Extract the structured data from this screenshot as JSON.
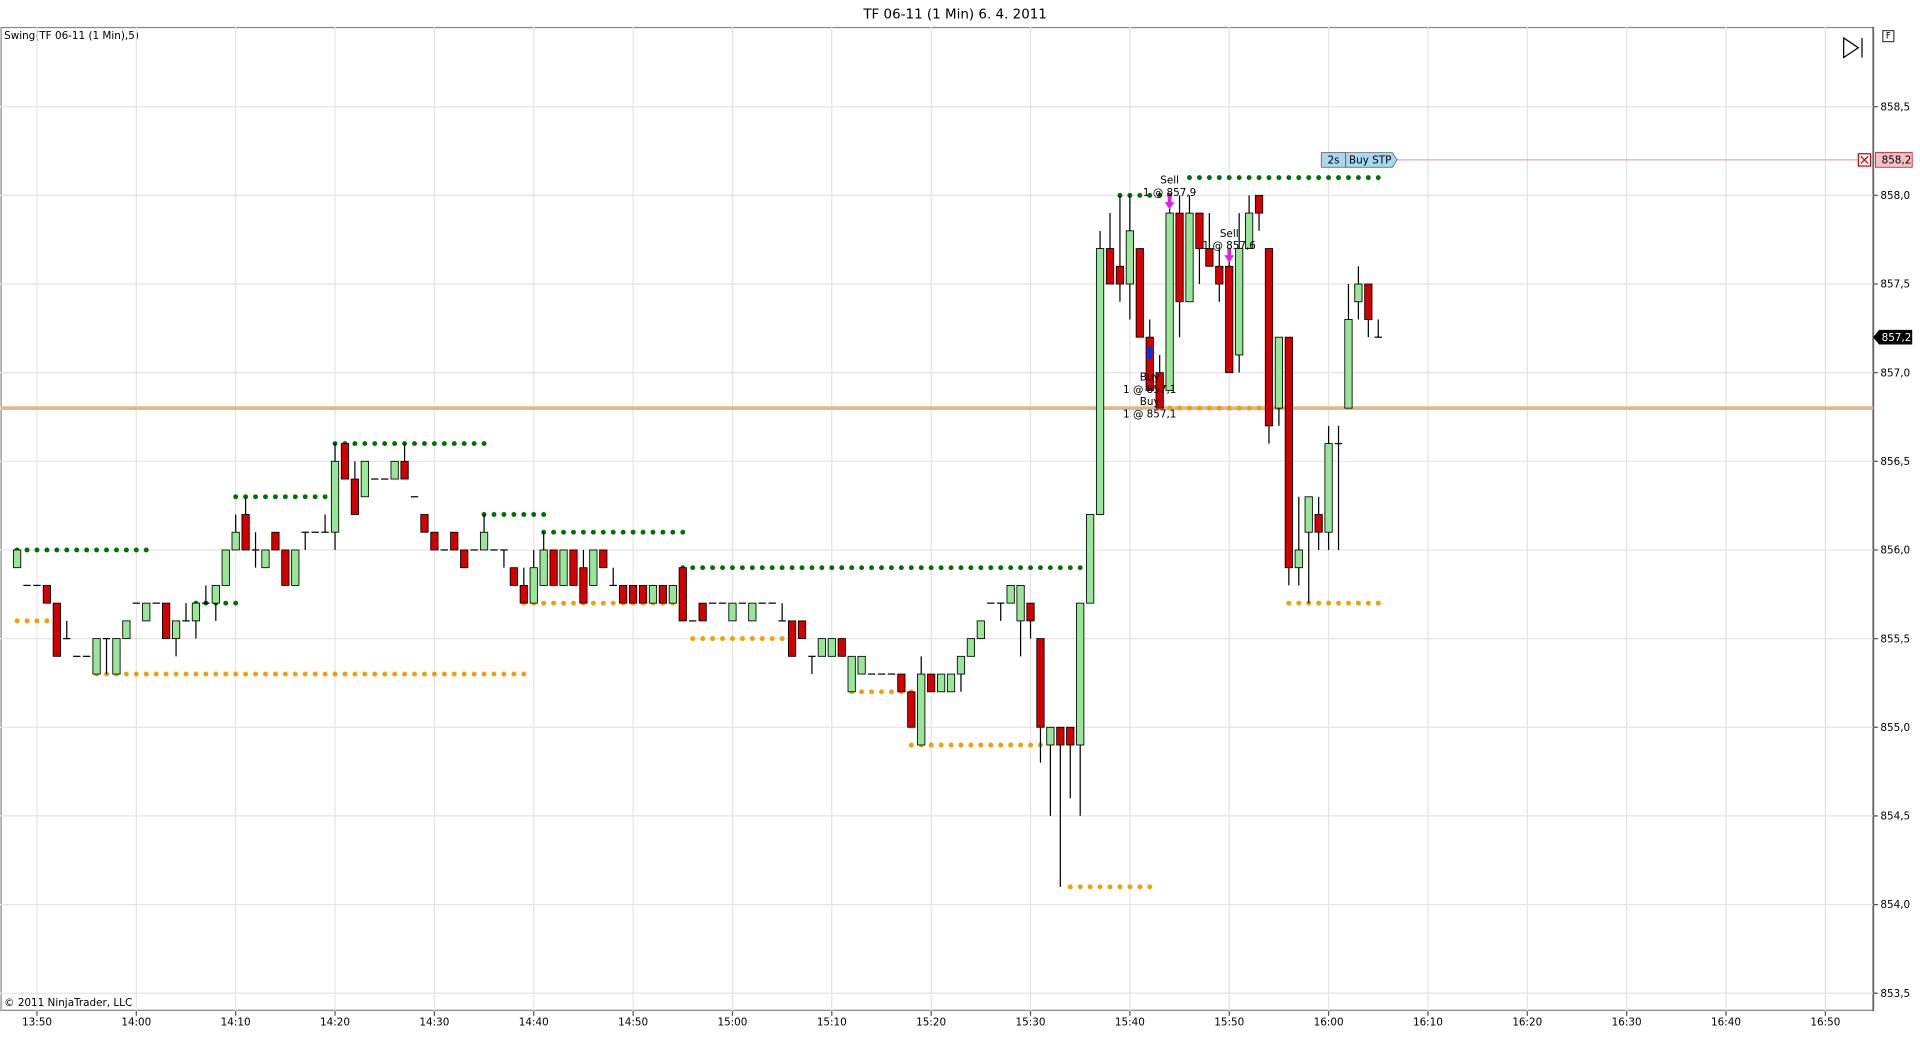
{
  "chart_data": {
    "type": "candlestick",
    "title": "TF 06-11 (1 Min)  6. 4. 2011",
    "indicator": "Swing(TF 06-11 (1 Min),5)",
    "copyright": "© 2011 NinjaTrader, LLC",
    "ylim": [
      853.4,
      858.95
    ],
    "yticks": [
      {
        "value": 853.5,
        "label": "853,5"
      },
      {
        "value": 854,
        "label": "854,0"
      },
      {
        "value": 854.5,
        "label": "854,5"
      },
      {
        "value": 855,
        "label": "855,0"
      },
      {
        "value": 855.5,
        "label": "855,5"
      },
      {
        "value": 856,
        "label": "856,0"
      },
      {
        "value": 856.5,
        "label": "856,5"
      },
      {
        "value": 857,
        "label": "857,0"
      },
      {
        "value": 857.5,
        "label": "857,5"
      },
      {
        "value": 858,
        "label": "858,0"
      },
      {
        "value": 858.5,
        "label": "858,5"
      }
    ],
    "xticks": [
      "13:50",
      "14:00",
      "14:10",
      "14:20",
      "14:30",
      "14:40",
      "14:50",
      "15:00",
      "15:10",
      "15:20",
      "15:30",
      "15:40",
      "15:50",
      "16:00",
      "16:10",
      "16:20",
      "16:30",
      "16:40",
      "16:50"
    ],
    "grid": true,
    "up_color": "#98e698",
    "down_color": "#d40000",
    "candles": [
      [
        "13:48",
        855.9,
        856.0,
        855.9,
        856.0
      ],
      [
        "13:49",
        855.8,
        855.8,
        855.8,
        855.8
      ],
      [
        "13:50",
        855.8,
        855.8,
        855.8,
        855.8
      ],
      [
        "13:51",
        855.8,
        855.8,
        855.7,
        855.7
      ],
      [
        "13:52",
        855.7,
        855.7,
        855.4,
        855.4
      ],
      [
        "13:53",
        855.5,
        855.6,
        855.5,
        855.5
      ],
      [
        "13:54",
        855.4,
        855.4,
        855.4,
        855.4
      ],
      [
        "13:55",
        855.4,
        855.4,
        855.4,
        855.4
      ],
      [
        "13:56",
        855.3,
        855.5,
        855.3,
        855.5
      ],
      [
        "13:57",
        855.5,
        855.5,
        855.3,
        855.5
      ],
      [
        "13:58",
        855.3,
        855.5,
        855.3,
        855.5
      ],
      [
        "13:59",
        855.5,
        855.6,
        855.5,
        855.6
      ],
      [
        "14:00",
        855.7,
        855.7,
        855.7,
        855.7
      ],
      [
        "14:01",
        855.6,
        855.7,
        855.6,
        855.7
      ],
      [
        "14:02",
        855.7,
        855.7,
        855.7,
        855.7
      ],
      [
        "14:03",
        855.7,
        855.7,
        855.5,
        855.5
      ],
      [
        "14:04",
        855.5,
        855.6,
        855.4,
        855.6
      ],
      [
        "14:05",
        855.6,
        855.7,
        855.6,
        855.6
      ],
      [
        "14:06",
        855.6,
        855.7,
        855.5,
        855.7
      ],
      [
        "14:07",
        855.7,
        855.8,
        855.7,
        855.7
      ],
      [
        "14:08",
        855.7,
        855.8,
        855.6,
        855.8
      ],
      [
        "14:09",
        855.8,
        856.0,
        855.8,
        856.0
      ],
      [
        "14:10",
        856.0,
        856.2,
        856.0,
        856.1
      ],
      [
        "14:11",
        856.2,
        856.3,
        856.0,
        856.0
      ],
      [
        "14:12",
        856.0,
        856.1,
        855.9,
        856.0
      ],
      [
        "14:13",
        855.9,
        856.0,
        855.9,
        856.0
      ],
      [
        "14:14",
        856.1,
        856.1,
        856.0,
        856.0
      ],
      [
        "14:15",
        856.0,
        856.0,
        855.8,
        855.8
      ],
      [
        "14:16",
        855.8,
        856.0,
        855.8,
        856.0
      ],
      [
        "14:17",
        856.1,
        856.1,
        856.0,
        856.1
      ],
      [
        "14:18",
        856.1,
        856.1,
        856.1,
        856.1
      ],
      [
        "14:19",
        856.1,
        856.2,
        856.1,
        856.1
      ],
      [
        "14:20",
        856.1,
        856.6,
        856.0,
        856.5
      ],
      [
        "14:21",
        856.6,
        856.6,
        856.4,
        856.4
      ],
      [
        "14:22",
        856.4,
        856.5,
        856.2,
        856.2
      ],
      [
        "14:23",
        856.3,
        856.5,
        856.3,
        856.5
      ],
      [
        "14:24",
        856.4,
        856.4,
        856.4,
        856.4
      ],
      [
        "14:25",
        856.4,
        856.4,
        856.4,
        856.4
      ],
      [
        "14:26",
        856.4,
        856.5,
        856.4,
        856.5
      ],
      [
        "14:27",
        856.5,
        856.6,
        856.4,
        856.4
      ],
      [
        "14:28",
        856.3,
        856.3,
        856.3,
        856.3
      ],
      [
        "14:29",
        856.2,
        856.2,
        856.1,
        856.1
      ],
      [
        "14:30",
        856.1,
        856.1,
        856.0,
        856.0
      ],
      [
        "14:31",
        856.0,
        856.0,
        856.0,
        856.0
      ],
      [
        "14:32",
        856.1,
        856.1,
        856.0,
        856.0
      ],
      [
        "14:33",
        856.0,
        856.0,
        855.9,
        855.9
      ],
      [
        "14:34",
        856.0,
        856.0,
        856.0,
        856.0
      ],
      [
        "14:35",
        856.0,
        856.2,
        856.0,
        856.1
      ],
      [
        "14:36",
        856.0,
        856.0,
        856.0,
        856.0
      ],
      [
        "14:37",
        856.0,
        856.0,
        855.9,
        856.0
      ],
      [
        "14:38",
        855.9,
        855.9,
        855.8,
        855.8
      ],
      [
        "14:39",
        855.8,
        855.9,
        855.7,
        855.7
      ],
      [
        "14:40",
        855.7,
        856.0,
        855.7,
        855.9
      ],
      [
        "14:41",
        855.8,
        856.1,
        855.8,
        856.0
      ],
      [
        "14:42",
        856.0,
        856.0,
        855.8,
        855.8
      ],
      [
        "14:43",
        855.8,
        856.0,
        855.8,
        856.0
      ],
      [
        "14:44",
        856.0,
        856.0,
        855.8,
        855.8
      ],
      [
        "14:45",
        855.9,
        856.0,
        855.7,
        855.7
      ],
      [
        "14:46",
        855.8,
        856.0,
        855.8,
        856.0
      ],
      [
        "14:47",
        856.0,
        856.0,
        855.9,
        855.9
      ],
      [
        "14:48",
        855.8,
        855.9,
        855.8,
        855.8
      ],
      [
        "14:49",
        855.8,
        855.8,
        855.7,
        855.7
      ],
      [
        "14:50",
        855.8,
        855.8,
        855.7,
        855.7
      ],
      [
        "14:51",
        855.8,
        855.8,
        855.7,
        855.7
      ],
      [
        "14:52",
        855.7,
        855.8,
        855.7,
        855.8
      ],
      [
        "14:53",
        855.8,
        855.8,
        855.7,
        855.7
      ],
      [
        "14:54",
        855.7,
        855.8,
        855.7,
        855.8
      ],
      [
        "14:55",
        855.9,
        855.9,
        855.6,
        855.6
      ],
      [
        "14:56",
        855.6,
        855.6,
        855.6,
        855.6
      ],
      [
        "14:57",
        855.7,
        855.7,
        855.6,
        855.6
      ],
      [
        "14:58",
        855.7,
        855.7,
        855.7,
        855.7
      ],
      [
        "14:59",
        855.7,
        855.7,
        855.7,
        855.7
      ],
      [
        "15:00",
        855.6,
        855.7,
        855.6,
        855.7
      ],
      [
        "15:01",
        855.7,
        855.7,
        855.7,
        855.7
      ],
      [
        "15:02",
        855.6,
        855.7,
        855.6,
        855.7
      ],
      [
        "15:03",
        855.7,
        855.7,
        855.7,
        855.7
      ],
      [
        "15:04",
        855.7,
        855.7,
        855.7,
        855.7
      ],
      [
        "15:05",
        855.6,
        855.7,
        855.6,
        855.6
      ],
      [
        "15:06",
        855.6,
        855.6,
        855.4,
        855.4
      ],
      [
        "15:07",
        855.6,
        855.6,
        855.5,
        855.5
      ],
      [
        "15:08",
        855.4,
        855.4,
        855.3,
        855.4
      ],
      [
        "15:09",
        855.4,
        855.5,
        855.4,
        855.5
      ],
      [
        "15:10",
        855.4,
        855.5,
        855.4,
        855.5
      ],
      [
        "15:11",
        855.5,
        855.5,
        855.4,
        855.4
      ],
      [
        "15:12",
        855.2,
        855.4,
        855.2,
        855.4
      ],
      [
        "15:13",
        855.3,
        855.4,
        855.3,
        855.4
      ],
      [
        "15:14",
        855.3,
        855.3,
        855.3,
        855.3
      ],
      [
        "15:15",
        855.3,
        855.3,
        855.3,
        855.3
      ],
      [
        "15:16",
        855.3,
        855.3,
        855.3,
        855.3
      ],
      [
        "15:17",
        855.3,
        855.3,
        855.2,
        855.2
      ],
      [
        "15:18",
        855.2,
        855.2,
        855.0,
        855.0
      ],
      [
        "15:19",
        854.9,
        855.4,
        854.9,
        855.3
      ],
      [
        "15:20",
        855.3,
        855.3,
        855.2,
        855.2
      ],
      [
        "15:21",
        855.2,
        855.3,
        855.2,
        855.3
      ],
      [
        "15:22",
        855.2,
        855.3,
        855.2,
        855.3
      ],
      [
        "15:23",
        855.3,
        855.4,
        855.2,
        855.4
      ],
      [
        "15:24",
        855.4,
        855.5,
        855.4,
        855.5
      ],
      [
        "15:25",
        855.5,
        855.6,
        855.5,
        855.6
      ],
      [
        "15:26",
        855.7,
        855.7,
        855.7,
        855.7
      ],
      [
        "15:27",
        855.7,
        855.7,
        855.6,
        855.7
      ],
      [
        "15:28",
        855.7,
        855.8,
        855.7,
        855.8
      ],
      [
        "15:29",
        855.6,
        855.8,
        855.4,
        855.8
      ],
      [
        "15:30",
        855.7,
        855.7,
        855.5,
        855.6
      ],
      [
        "15:31",
        855.5,
        855.5,
        854.8,
        855.0
      ],
      [
        "15:32",
        854.9,
        855.0,
        854.5,
        855.0
      ],
      [
        "15:33",
        855.0,
        855.0,
        854.1,
        854.9
      ],
      [
        "15:34",
        855.0,
        855.0,
        854.6,
        854.9
      ],
      [
        "15:35",
        854.9,
        855.7,
        854.5,
        855.7
      ],
      [
        "15:36",
        855.7,
        856.2,
        855.7,
        856.2
      ],
      [
        "15:37",
        856.2,
        857.8,
        856.2,
        857.7
      ],
      [
        "15:38",
        857.7,
        857.9,
        857.5,
        857.5
      ],
      [
        "15:39",
        857.6,
        858.0,
        857.4,
        857.5
      ],
      [
        "15:40",
        857.5,
        858.0,
        857.3,
        857.8
      ],
      [
        "15:41",
        857.7,
        857.7,
        857.2,
        857.2
      ],
      [
        "15:42",
        857.2,
        857.3,
        856.9,
        856.9
      ],
      [
        "15:43",
        857.0,
        857.1,
        856.8,
        856.8
      ],
      [
        "15:44",
        856.9,
        858.0,
        856.9,
        857.9
      ],
      [
        "15:45",
        857.9,
        858.0,
        857.2,
        857.4
      ],
      [
        "15:46",
        857.4,
        858.0,
        857.4,
        857.9
      ],
      [
        "15:47",
        857.9,
        857.9,
        857.5,
        857.7
      ],
      [
        "15:48",
        857.7,
        857.9,
        857.6,
        857.6
      ],
      [
        "15:49",
        857.6,
        857.7,
        857.4,
        857.5
      ],
      [
        "15:50",
        857.6,
        857.7,
        857.0,
        857.0
      ],
      [
        "15:51",
        857.1,
        857.9,
        857.0,
        857.7
      ],
      [
        "15:52",
        857.7,
        858.0,
        857.7,
        857.9
      ],
      [
        "15:53",
        858.0,
        858.0,
        857.8,
        857.9
      ],
      [
        "15:54",
        857.7,
        857.7,
        856.6,
        856.7
      ],
      [
        "15:55",
        856.8,
        857.2,
        856.7,
        857.2
      ],
      [
        "15:56",
        857.2,
        857.2,
        855.8,
        855.9
      ],
      [
        "15:57",
        855.9,
        856.3,
        855.8,
        856.0
      ],
      [
        "15:58",
        856.1,
        856.3,
        855.7,
        856.3
      ],
      [
        "15:59",
        856.2,
        856.3,
        856.0,
        856.1
      ],
      [
        "16:00",
        856.1,
        856.7,
        856.0,
        856.6
      ],
      [
        "16:01",
        856.6,
        856.7,
        856.0,
        856.6
      ],
      [
        "16:02",
        856.8,
        857.5,
        856.8,
        857.3
      ],
      [
        "16:03",
        857.4,
        857.6,
        857.3,
        857.5
      ],
      [
        "16:04",
        857.5,
        857.5,
        857.2,
        857.3
      ],
      [
        "16:05",
        857.2,
        857.3,
        857.2,
        857.2
      ]
    ],
    "swing_high": {
      "color": "#007000",
      "segments": [
        {
          "start": "13:48",
          "end": "14:01",
          "value": 856.0
        },
        {
          "start": "14:06",
          "end": "14:10",
          "value": 855.7
        },
        {
          "start": "14:10",
          "end": "14:20",
          "value": 856.3
        },
        {
          "start": "14:20",
          "end": "14:35",
          "value": 856.6
        },
        {
          "start": "14:35",
          "end": "14:41",
          "value": 856.2
        },
        {
          "start": "14:41",
          "end": "14:55",
          "value": 856.1
        },
        {
          "start": "14:55",
          "end": "15:36",
          "value": 855.9
        },
        {
          "start": "15:39",
          "end": "15:44",
          "value": 858.0
        },
        {
          "start": "15:46",
          "end": "16:05",
          "value": 858.1
        }
      ]
    },
    "swing_low": {
      "color": "#f0a000",
      "segments": [
        {
          "start": "13:48",
          "end": "13:51",
          "value": 855.6
        },
        {
          "start": "13:56",
          "end": "14:39",
          "value": 855.3
        },
        {
          "start": "14:39",
          "end": "14:54",
          "value": 855.7
        },
        {
          "start": "14:56",
          "end": "15:06",
          "value": 855.5
        },
        {
          "start": "15:12",
          "end": "15:18",
          "value": 855.2
        },
        {
          "start": "15:18",
          "end": "15:31",
          "value": 854.9
        },
        {
          "start": "15:34",
          "end": "15:42",
          "value": 854.1
        },
        {
          "start": "15:43",
          "end": "15:56",
          "value": 856.8
        },
        {
          "start": "15:56",
          "end": "16:05",
          "value": 855.7
        }
      ]
    },
    "reference_line": {
      "value": 856.8,
      "color": "#e0b888"
    },
    "current_price": {
      "value": 857.2,
      "label": "857,2"
    },
    "order": {
      "age": "2s",
      "type": "Buy STP",
      "time": "16:00",
      "price": 858.2,
      "label": "858,2"
    },
    "trades": [
      {
        "side": "Sell",
        "text": "1 @ 857,9",
        "time": "15:44",
        "price": 857.9
      },
      {
        "side": "Sell",
        "text": "1 @ 857,6",
        "time": "15:50",
        "price": 857.6
      },
      {
        "side": "Buy",
        "text": "1 @ 857,1",
        "time": "15:42",
        "price": 857.1
      },
      {
        "side": "Buy",
        "text": "1 @ 857,1",
        "time": "15:42",
        "price": 857.1
      }
    ]
  }
}
